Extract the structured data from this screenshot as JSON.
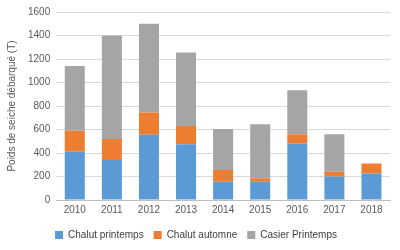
{
  "chart_data": {
    "type": "bar",
    "stacked": true,
    "grid": true,
    "legend": "bottom",
    "y_label": "Poids de seiche débarqué (T)",
    "categories": [
      "2010",
      "2011",
      "2012",
      "2013",
      "2014",
      "2015",
      "2016",
      "2017",
      "2018"
    ],
    "series": [
      {
        "name": "Chalut printemps",
        "color": "#5b9bd5",
        "values": [
          410,
          340,
          555,
          475,
          155,
          155,
          480,
          200,
          225
        ]
      },
      {
        "name": "Chalut automne",
        "color": "#ed7d31",
        "values": [
          180,
          180,
          190,
          155,
          100,
          30,
          80,
          40,
          85
        ]
      },
      {
        "name": "Casier Printemps",
        "color": "#a5a5a5",
        "values": [
          550,
          880,
          755,
          625,
          350,
          460,
          375,
          320,
          0
        ]
      }
    ],
    "ylim": [
      0,
      1600
    ],
    "yticks": [
      0,
      200,
      400,
      600,
      800,
      1000,
      1200,
      1400,
      1600
    ]
  }
}
